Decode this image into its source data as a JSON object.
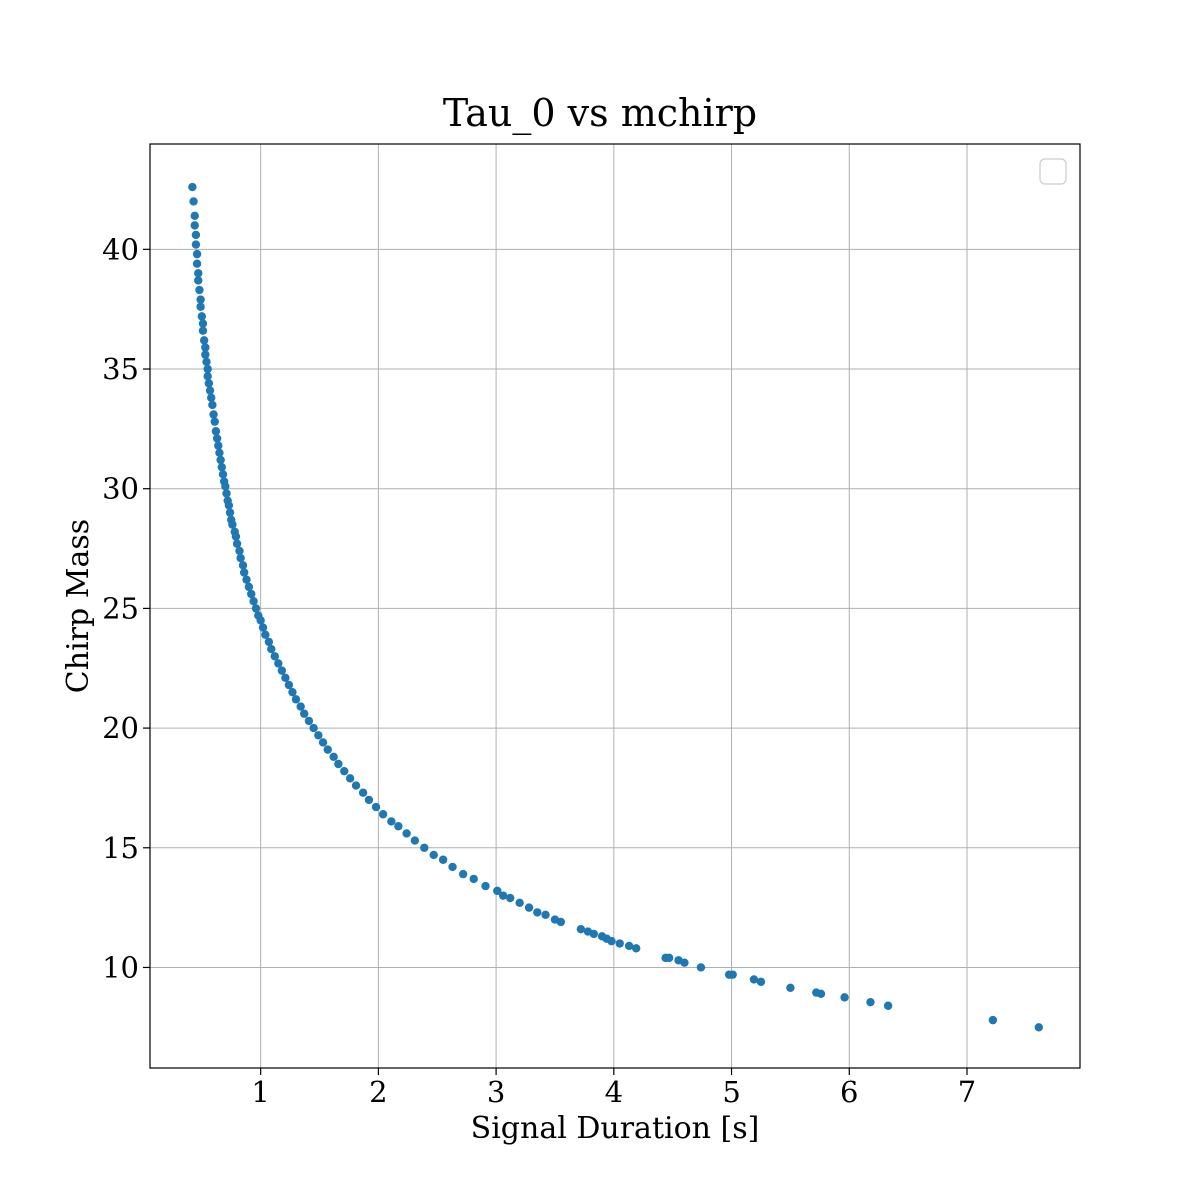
{
  "chart_data": {
    "type": "scatter",
    "title": "Tau_0 vs mchirp",
    "xlabel": "Signal Duration [s]",
    "ylabel": "Chirp Mass",
    "xlim": [
      0.06,
      7.96
    ],
    "ylim": [
      5.8,
      44.4
    ],
    "xticks": [
      1,
      2,
      3,
      4,
      5,
      6,
      7
    ],
    "yticks": [
      10,
      15,
      20,
      25,
      30,
      35,
      40
    ],
    "grid": true,
    "legend": {
      "visible": true,
      "placement": "top-right",
      "entries": []
    },
    "marker_color": "#1f77b4",
    "series": [
      {
        "x": [
          0.42,
          0.43,
          0.44,
          0.44,
          0.45,
          0.45,
          0.46,
          0.46,
          0.47,
          0.47,
          0.48,
          0.49,
          0.49,
          0.5,
          0.51,
          0.51,
          0.52,
          0.53,
          0.53,
          0.54,
          0.55,
          0.55,
          0.56,
          0.57,
          0.58,
          0.59,
          0.6,
          0.61,
          0.62,
          0.63,
          0.64,
          0.65,
          0.66,
          0.67,
          0.68,
          0.69,
          0.7,
          0.71,
          0.72,
          0.73,
          0.74,
          0.75,
          0.76,
          0.78,
          0.79,
          0.8,
          0.82,
          0.83,
          0.85,
          0.86,
          0.88,
          0.9,
          0.92,
          0.94,
          0.96,
          0.98,
          1.0,
          1.02,
          1.04,
          1.07,
          1.09,
          1.12,
          1.15,
          1.18,
          1.21,
          1.24,
          1.27,
          1.3,
          1.34,
          1.37,
          1.41,
          1.45,
          1.49,
          1.53,
          1.57,
          1.62,
          1.66,
          1.71,
          1.76,
          1.81,
          1.87,
          1.92,
          1.98,
          2.04,
          2.11,
          2.17,
          2.24,
          2.31,
          2.39,
          2.47,
          2.55,
          2.63,
          2.72,
          2.81,
          2.91,
          3.01,
          3.06,
          3.12,
          3.2,
          3.28,
          3.35,
          3.42,
          3.5,
          3.55,
          3.72,
          3.78,
          3.83,
          3.9,
          3.94,
          3.98,
          4.05,
          4.13,
          4.19,
          4.44,
          4.47,
          4.55,
          4.6,
          4.74,
          4.98,
          5.01,
          5.19,
          5.25,
          5.5,
          5.72,
          5.76,
          5.96,
          6.18,
          6.33,
          7.22,
          7.61
        ],
        "y": [
          42.6,
          42.0,
          41.4,
          41.0,
          40.6,
          40.2,
          39.8,
          39.4,
          39.0,
          38.7,
          38.3,
          37.9,
          37.6,
          37.2,
          36.9,
          36.6,
          36.2,
          35.9,
          35.6,
          35.3,
          35.0,
          34.7,
          34.4,
          34.1,
          33.8,
          33.5,
          33.1,
          32.8,
          32.4,
          32.1,
          31.8,
          31.5,
          31.2,
          30.9,
          30.6,
          30.3,
          30.1,
          29.8,
          29.5,
          29.3,
          29.0,
          28.7,
          28.5,
          28.2,
          28.0,
          27.7,
          27.4,
          27.1,
          26.8,
          26.5,
          26.2,
          25.9,
          25.6,
          25.3,
          25.0,
          24.7,
          24.5,
          24.2,
          23.9,
          23.6,
          23.3,
          23.0,
          22.7,
          22.4,
          22.1,
          21.8,
          21.5,
          21.2,
          20.9,
          20.6,
          20.3,
          20.0,
          19.7,
          19.4,
          19.1,
          18.8,
          18.5,
          18.2,
          17.9,
          17.6,
          17.3,
          17.0,
          16.7,
          16.4,
          16.1,
          15.9,
          15.6,
          15.3,
          15.0,
          14.7,
          14.5,
          14.2,
          13.9,
          13.7,
          13.4,
          13.2,
          13.0,
          12.9,
          12.7,
          12.5,
          12.3,
          12.2,
          12.0,
          11.9,
          11.6,
          11.5,
          11.4,
          11.3,
          11.2,
          11.1,
          11.0,
          10.9,
          10.8,
          10.4,
          10.4,
          10.3,
          10.2,
          10.0,
          9.7,
          9.7,
          9.5,
          9.4,
          9.15,
          8.95,
          8.9,
          8.75,
          8.55,
          8.4,
          7.8,
          7.5
        ]
      }
    ]
  }
}
